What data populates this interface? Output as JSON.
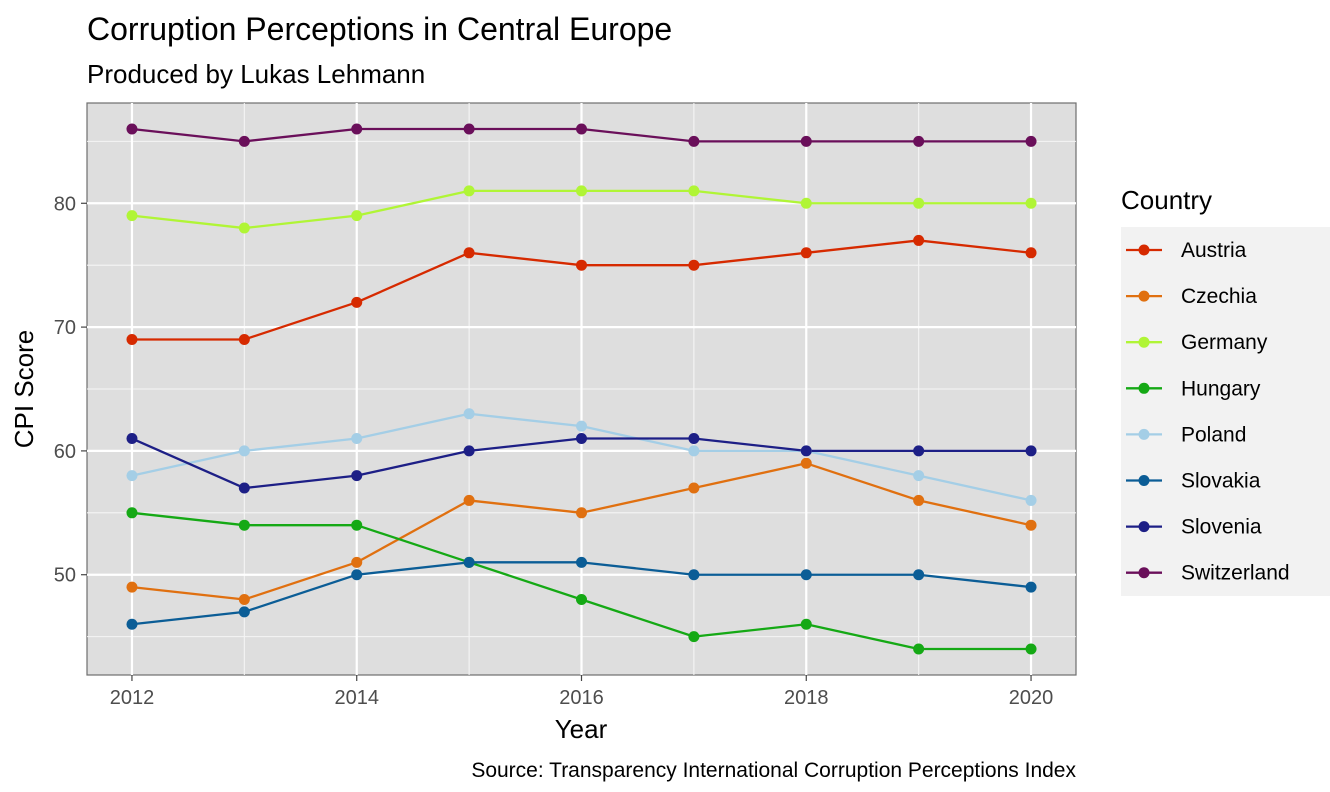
{
  "chart_data": {
    "type": "line",
    "title": "Corruption Perceptions in Central Europe",
    "subtitle": "Produced by Lukas Lehmann",
    "caption": "Source: Transparency International Corruption Perceptions Index",
    "xlabel": "Year",
    "ylabel": "CPI Score",
    "xlim": [
      2011.6,
      2020.4
    ],
    "ylim": [
      41.9,
      88.1
    ],
    "x_ticks": [
      2012,
      2014,
      2016,
      2018,
      2020
    ],
    "y_ticks": [
      50,
      60,
      70,
      80
    ],
    "grid": true,
    "legend": {
      "title": "Country",
      "placement": "right"
    },
    "x": [
      2012,
      2013,
      2014,
      2015,
      2016,
      2017,
      2018,
      2019,
      2020
    ],
    "series": [
      {
        "name": "Austria",
        "color": "#d62a00",
        "values": [
          69,
          69,
          72,
          76,
          75,
          75,
          76,
          77,
          76
        ]
      },
      {
        "name": "Czechia",
        "color": "#e07010",
        "values": [
          49,
          48,
          51,
          56,
          55,
          57,
          59,
          56,
          54
        ]
      },
      {
        "name": "Germany",
        "color": "#b0f536",
        "values": [
          79,
          78,
          79,
          81,
          81,
          81,
          80,
          80,
          80
        ]
      },
      {
        "name": "Hungary",
        "color": "#15a915",
        "values": [
          55,
          54,
          54,
          51,
          48,
          45,
          46,
          44,
          44
        ]
      },
      {
        "name": "Poland",
        "color": "#a4cee6",
        "values": [
          58,
          60,
          61,
          63,
          62,
          60,
          60,
          58,
          56
        ]
      },
      {
        "name": "Slovakia",
        "color": "#0b5d96",
        "values": [
          46,
          47,
          50,
          51,
          51,
          50,
          50,
          50,
          49
        ]
      },
      {
        "name": "Slovenia",
        "color": "#1d1f86",
        "values": [
          61,
          57,
          58,
          60,
          61,
          61,
          60,
          60,
          60
        ]
      },
      {
        "name": "Switzerland",
        "color": "#6a0f5a",
        "values": [
          86,
          85,
          86,
          86,
          86,
          85,
          85,
          85,
          85
        ]
      }
    ]
  }
}
